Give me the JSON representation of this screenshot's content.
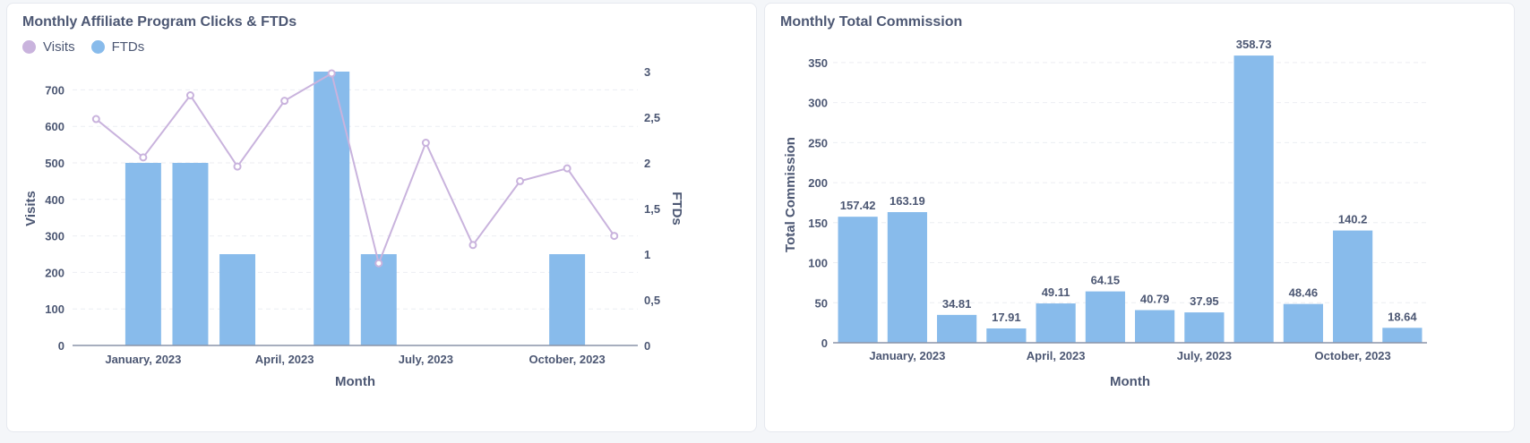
{
  "charts": [
    {
      "title": "Monthly Affiliate Program Clicks & FTDs",
      "legend": [
        {
          "label": "Visits",
          "color": "#c9b3dd"
        },
        {
          "label": "FTDs",
          "color": "#88bbeb"
        }
      ]
    },
    {
      "title": "Monthly Total Commission"
    }
  ],
  "chart_data": [
    {
      "type": "bar+line",
      "title": "Monthly Affiliate Program Clicks & FTDs",
      "xlabel": "Month",
      "x_tick_labels": [
        "January, 2023",
        "April, 2023",
        "July, 2023",
        "October, 2023"
      ],
      "months": [
        "2022-12",
        "2023-01",
        "2023-02",
        "2023-03",
        "2023-04",
        "2023-05",
        "2023-06",
        "2023-07",
        "2023-08",
        "2023-09",
        "2023-10",
        "2023-11"
      ],
      "left_axis": {
        "label": "Visits",
        "ylim": [
          0,
          750
        ],
        "ticks": [
          "0",
          "100",
          "200",
          "300",
          "400",
          "500",
          "600",
          "700"
        ]
      },
      "right_axis": {
        "label": "FTDs",
        "ylim": [
          0,
          3
        ],
        "ticks": [
          "0",
          "0,5",
          "1",
          "1,5",
          "2",
          "2,5",
          "3"
        ]
      },
      "series": [
        {
          "name": "Visits",
          "type": "line",
          "axis": "left",
          "color": "#c9b3dd",
          "values": [
            620,
            515,
            685,
            490,
            670,
            745,
            225,
            555,
            275,
            450,
            485,
            300
          ]
        },
        {
          "name": "FTDs",
          "type": "bar",
          "axis": "right",
          "color": "#88bbeb",
          "values": [
            0,
            2,
            2,
            1,
            0,
            3,
            1,
            0,
            0,
            0,
            1,
            0
          ]
        }
      ],
      "grid": true,
      "legend_position": "top-left"
    },
    {
      "type": "bar",
      "title": "Monthly Total Commission",
      "xlabel": "Month",
      "ylabel": "Total Commission",
      "x_tick_labels": [
        "January, 2023",
        "April, 2023",
        "July, 2023",
        "October, 2023"
      ],
      "months": [
        "2022-12",
        "2023-01",
        "2023-02",
        "2023-03",
        "2023-04",
        "2023-05",
        "2023-06",
        "2023-07",
        "2023-08",
        "2023-09",
        "2023-10",
        "2023-11"
      ],
      "values": [
        157.42,
        163.19,
        34.81,
        17.91,
        49.11,
        64.15,
        40.79,
        37.95,
        358.73,
        48.46,
        140.2,
        18.64
      ],
      "data_labels": [
        "157.42",
        "163.19",
        "34.81",
        "17.91",
        "49.11",
        "64.15",
        "40.79",
        "37.95",
        "358.73",
        "48.46",
        "140.2",
        "18.64"
      ],
      "ylim": [
        0,
        370
      ],
      "y_ticks": [
        "0",
        "50",
        "100",
        "150",
        "200",
        "250",
        "300",
        "350"
      ],
      "color": "#88bbeb",
      "grid": true
    }
  ]
}
